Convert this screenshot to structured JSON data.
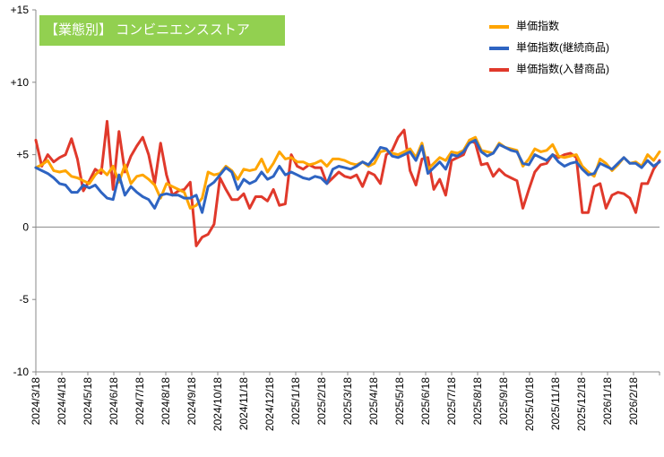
{
  "chart_data": {
    "type": "line",
    "title": "【業態別】 コンビニエンスストア",
    "xlabel": "",
    "ylabel": "",
    "ylim": [
      -10,
      15
    ],
    "y_ticks": [
      "-10",
      "-5",
      "0",
      "+5",
      "+10",
      "+15"
    ],
    "y_tick_values": [
      -10,
      -5,
      0,
      5,
      10,
      15
    ],
    "x_tick_labels": [
      "2024/3/18",
      "2024/4/18",
      "2024/5/18",
      "2024/6/18",
      "2024/7/18",
      "2024/8/18",
      "2024/9/18",
      "2024/10/18",
      "2024/11/18",
      "2024/12/18",
      "2025/1/18",
      "2025/2/18",
      "2025/3/18",
      "2025/4/18",
      "2025/5/18",
      "2025/6/18",
      "2025/7/18",
      "2025/8/18",
      "2025/9/18",
      "2025/10/18",
      "2025/11/18",
      "2025/12/18",
      "2026/1/18",
      "2026/2/18"
    ],
    "legend_position": "top-right",
    "grid": false,
    "series": [
      {
        "name": "単価指数",
        "color": "#ffa500",
        "values": [
          4.1,
          4.3,
          4.6,
          3.9,
          3.8,
          3.9,
          3.5,
          3.4,
          3.2,
          3.0,
          3.6,
          4.0,
          3.6,
          4.2,
          3.1,
          4.3,
          3.0,
          3.5,
          3.6,
          3.3,
          2.9,
          2.0,
          3.0,
          2.8,
          2.6,
          2.4,
          1.3,
          1.5,
          2.0,
          3.8,
          3.6,
          3.7,
          4.2,
          3.9,
          3.3,
          4.0,
          3.9,
          4.0,
          4.7,
          3.8,
          4.4,
          5.2,
          4.7,
          4.8,
          4.5,
          4.5,
          4.3,
          4.4,
          4.6,
          4.2,
          4.7,
          4.7,
          4.6,
          4.4,
          4.3,
          4.5,
          4.2,
          4.4,
          5.2,
          5.3,
          5.1,
          5.0,
          5.2,
          5.4,
          4.8,
          5.8,
          4.0,
          4.4,
          4.8,
          4.6,
          5.2,
          5.1,
          5.3,
          6.0,
          6.2,
          5.3,
          5.2,
          5.1,
          5.8,
          5.5,
          5.4,
          5.3,
          4.2,
          4.7,
          5.4,
          5.2,
          5.3,
          5.7,
          4.9,
          4.8,
          4.9,
          5.0,
          4.2,
          3.8,
          3.5,
          4.7,
          4.4,
          3.9,
          4.3,
          4.8,
          4.4,
          4.5,
          4.2,
          5.0,
          4.6,
          5.2
        ]
      },
      {
        "name": "単価指数(継続商品)",
        "color": "#2e64c2",
        "values": [
          4.1,
          3.9,
          3.7,
          3.4,
          3.0,
          2.9,
          2.4,
          2.4,
          2.9,
          2.7,
          2.9,
          2.4,
          2.0,
          1.9,
          3.6,
          2.2,
          2.8,
          2.4,
          2.1,
          1.9,
          1.3,
          2.2,
          2.3,
          2.2,
          2.2,
          2.0,
          2.0,
          2.2,
          1.0,
          2.8,
          3.1,
          3.6,
          4.1,
          3.8,
          2.6,
          3.3,
          3.0,
          3.2,
          3.8,
          3.3,
          3.5,
          4.2,
          3.6,
          3.8,
          3.6,
          3.4,
          3.3,
          3.5,
          3.4,
          3.0,
          4.0,
          4.2,
          4.1,
          4.0,
          4.2,
          4.5,
          4.3,
          4.8,
          5.5,
          5.4,
          4.9,
          4.8,
          5.0,
          5.2,
          4.6,
          5.6,
          3.7,
          4.1,
          4.5,
          4.0,
          5.0,
          4.9,
          5.2,
          5.8,
          6.0,
          5.2,
          4.9,
          5.1,
          5.7,
          5.5,
          5.3,
          5.2,
          4.4,
          4.3,
          5.0,
          4.8,
          4.6,
          5.0,
          4.5,
          4.2,
          4.4,
          4.5,
          4.0,
          3.6,
          3.7,
          4.4,
          4.2,
          4.0,
          4.4,
          4.8,
          4.4,
          4.4,
          4.1,
          4.6,
          4.2,
          4.5
        ]
      },
      {
        "name": "単価指数(入替商品)",
        "color": "#e0392b",
        "values": [
          6.0,
          4.2,
          5.0,
          4.5,
          4.8,
          5.0,
          6.1,
          4.7,
          2.5,
          3.2,
          4.0,
          3.7,
          7.3,
          2.6,
          6.6,
          3.8,
          4.9,
          5.6,
          6.2,
          5.0,
          3.0,
          5.8,
          3.6,
          2.2,
          2.5,
          2.6,
          3.1,
          -1.3,
          -0.7,
          -0.5,
          0.2,
          3.4,
          2.6,
          1.9,
          1.9,
          2.3,
          1.3,
          2.1,
          2.1,
          1.8,
          2.6,
          1.5,
          1.6,
          5.0,
          4.2,
          4.0,
          4.3,
          4.1,
          4.1,
          3.0,
          3.4,
          3.8,
          3.5,
          3.4,
          3.6,
          2.8,
          3.8,
          3.6,
          3.0,
          5.0,
          5.3,
          6.2,
          6.7,
          3.9,
          2.9,
          4.7,
          4.8,
          2.6,
          3.3,
          2.2,
          4.6,
          4.8,
          5.0,
          6.0,
          5.8,
          4.3,
          4.4,
          3.5,
          4.0,
          3.6,
          3.4,
          3.2,
          1.3,
          2.6,
          3.8,
          4.3,
          4.4,
          5.0,
          4.8,
          5.0,
          5.1,
          4.8,
          1.0,
          1.0,
          2.8,
          3.0,
          1.3,
          2.2,
          2.4,
          2.3,
          2.0,
          1.0,
          3.0,
          3.0,
          4.0,
          4.6
        ]
      }
    ]
  }
}
